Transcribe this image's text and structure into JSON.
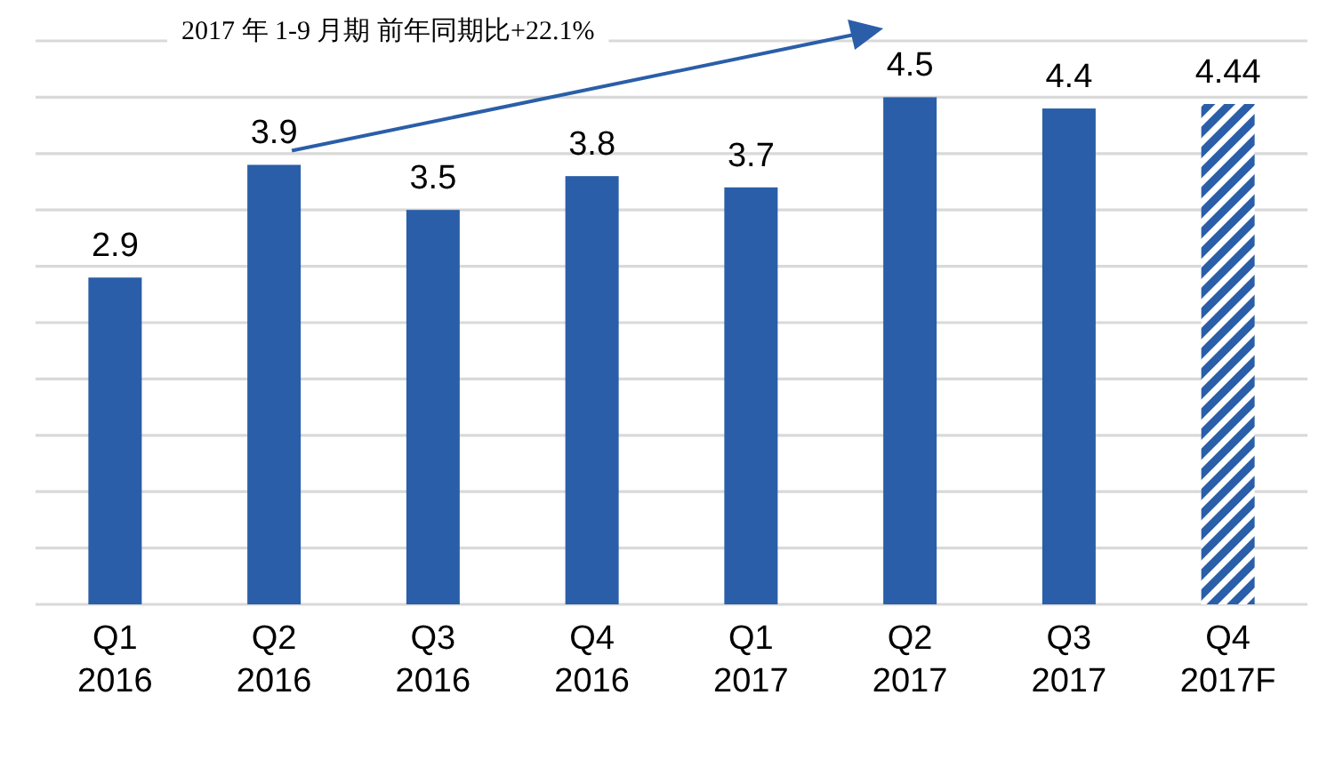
{
  "chart_data": {
    "type": "bar",
    "categories": [
      "Q1\n2016",
      "Q2\n2016",
      "Q3\n2016",
      "Q4\n2016",
      "Q1\n2017",
      "Q2\n2017",
      "Q3\n2017",
      "Q4\n2017F"
    ],
    "series": [
      {
        "color": "#2a5ea8",
        "values": [
          2.9,
          3.9,
          3.5,
          3.8,
          3.7,
          4.5,
          4.4,
          null
        ]
      },
      {
        "color": "#2a5ea8",
        "values": [
          null,
          null,
          null,
          null,
          null,
          null,
          null,
          4.44
        ]
      }
    ],
    "ylim": [
      0,
      5
    ],
    "yticks": [
      {
        "value": 0,
        "label": null
      },
      {
        "value": 0.5,
        "label": null
      },
      {
        "value": 1,
        "label": null
      },
      {
        "value": 1.5,
        "label": null
      },
      {
        "value": 2,
        "label": null
      },
      {
        "value": 2.5,
        "label": null
      },
      {
        "value": 3,
        "label": null
      },
      {
        "value": 3.5,
        "label": null
      },
      {
        "value": 4,
        "label": null
      },
      {
        "value": 4.5,
        "label": null
      },
      {
        "value": 5,
        "label": null
      }
    ],
    "grid": "y",
    "tick_labels": "x",
    "data_labels": true,
    "annotations": [
      "2017 年 1-9 月期  前年同期比+22.1%"
    ]
  }
}
